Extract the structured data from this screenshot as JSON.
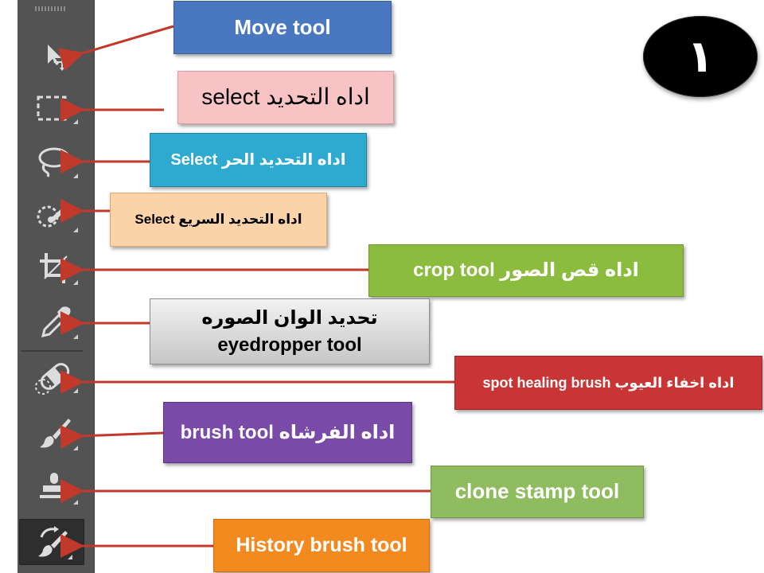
{
  "badge": {
    "number": "١"
  },
  "labels": {
    "move": "Move tool",
    "select": "select  اداه التحديد",
    "lasso": "Select  اداه التحديد الحر",
    "quick_select": "Select  اداه التحديد السريع",
    "crop": "crop tool   اداه قص الصور",
    "eyedropper_line1": "تحديد الوان الصوره",
    "eyedropper_line2": "eyedropper tool",
    "spot_healing": "spot healing brush اداه اخفاء العيوب",
    "brush": "brush tool  اداه الفرشاه",
    "clone": "clone stamp tool",
    "history": "History brush  tool"
  },
  "colors": {
    "toolbar_bg": "#535353",
    "arrow": "#c0392b",
    "move_box": "#4a78c0",
    "select_box": "#f7c3c5",
    "lasso_box": "#2eaad1",
    "quick_box": "#fbd3a8",
    "crop_box": "#8cbc3e",
    "eyedropper_box": "#d0d0d0",
    "spot_box": "#c93535",
    "brush_box": "#7a4aa8",
    "clone_box": "#8fbc5e",
    "history_box": "#f28a1f"
  },
  "icons": [
    "move-tool-icon",
    "rectangular-marquee-icon",
    "lasso-icon",
    "quick-selection-icon",
    "crop-icon",
    "eyedropper-icon",
    "spot-healing-brush-icon",
    "brush-icon",
    "clone-stamp-icon",
    "history-brush-icon"
  ]
}
